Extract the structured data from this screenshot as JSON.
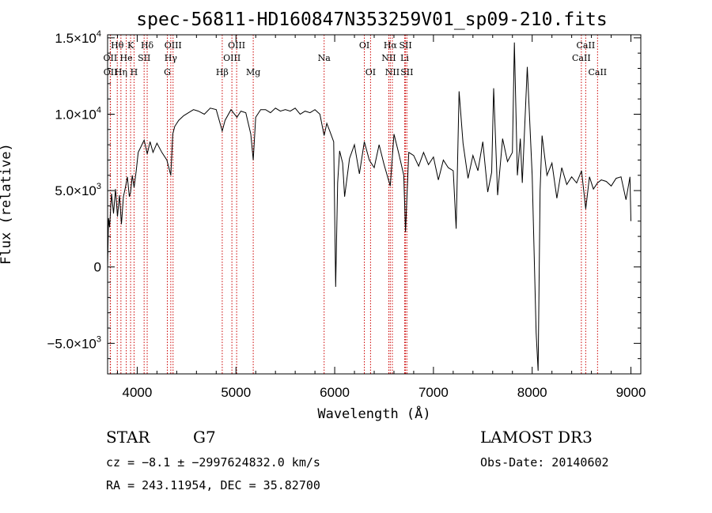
{
  "chart_data": {
    "type": "line",
    "title": "spec-56811-HD160847N353259V01_sp09-210.fits",
    "xlabel": "Wavelength (Å)",
    "ylabel": "Flux (relative)",
    "xlim": [
      3700,
      9100
    ],
    "ylim": [
      -7000,
      15200
    ],
    "x_ticks": [
      4000,
      5000,
      6000,
      7000,
      8000,
      9000
    ],
    "x_tick_labels": [
      "4000",
      "5000",
      "6000",
      "7000",
      "8000",
      "9000"
    ],
    "y_ticks": [
      -5000,
      0,
      5000,
      10000,
      15000
    ],
    "y_tick_labels": [
      {
        "mantissa": "−5.0×10",
        "exp": "3"
      },
      {
        "mantissa": "0",
        "exp": ""
      },
      {
        "mantissa": "5.0×10",
        "exp": "3"
      },
      {
        "mantissa": "1.0×10",
        "exp": "4"
      },
      {
        "mantissa": "1.5×10",
        "exp": "4"
      }
    ],
    "line_color": "#000000",
    "marker_color": "#cc0000",
    "series": [
      {
        "x": [
          3700,
          3710,
          3720,
          3740,
          3760,
          3780,
          3800,
          3820,
          3840,
          3860,
          3880,
          3900,
          3920,
          3933,
          3950,
          3968,
          3990,
          4010,
          4040,
          4070,
          4101,
          4130,
          4160,
          4200,
          4250,
          4300,
          4340,
          4360,
          4380,
          4420,
          4470,
          4520,
          4570,
          4620,
          4680,
          4740,
          4800,
          4861,
          4890,
          4950,
          5010,
          5050,
          5100,
          5150,
          5175,
          5200,
          5250,
          5300,
          5350,
          5400,
          5450,
          5500,
          5550,
          5600,
          5650,
          5700,
          5750,
          5800,
          5850,
          5893,
          5920,
          5950,
          5990,
          6010,
          6030,
          6050,
          6080,
          6100,
          6150,
          6200,
          6250,
          6300,
          6350,
          6400,
          6450,
          6500,
          6563,
          6600,
          6650,
          6700,
          6717,
          6750,
          6800,
          6850,
          6900,
          6950,
          7000,
          7050,
          7100,
          7150,
          7200,
          7230,
          7260,
          7300,
          7350,
          7400,
          7450,
          7500,
          7550,
          7590,
          7610,
          7650,
          7700,
          7750,
          7800,
          7820,
          7850,
          7880,
          7900,
          7950,
          8000,
          8040,
          8060,
          8080,
          8100,
          8150,
          8200,
          8250,
          8300,
          8350,
          8400,
          8450,
          8500,
          8542,
          8580,
          8620,
          8662,
          8700,
          8750,
          8800,
          8850,
          8900,
          8950,
          8990,
          9000
        ],
        "y": [
          0,
          3200,
          2600,
          4800,
          3500,
          5100,
          3300,
          4700,
          2800,
          4600,
          5200,
          5900,
          4600,
          4900,
          6000,
          5200,
          6300,
          7500,
          7900,
          8300,
          7400,
          8200,
          7500,
          8100,
          7500,
          7000,
          6000,
          8700,
          9200,
          9600,
          9900,
          10100,
          10300,
          10200,
          10000,
          10400,
          10300,
          8900,
          9600,
          10300,
          9800,
          10200,
          10100,
          8700,
          7000,
          9800,
          10300,
          10300,
          10100,
          10400,
          10200,
          10300,
          10200,
          10400,
          10000,
          10200,
          10100,
          10300,
          10000,
          8600,
          9400,
          8900,
          8200,
          -1300,
          5500,
          7600,
          6800,
          4600,
          7100,
          8000,
          6100,
          8200,
          7000,
          6500,
          8000,
          6700,
          5300,
          8700,
          7400,
          6000,
          2300,
          7500,
          7300,
          6600,
          7500,
          6700,
          7200,
          5700,
          7000,
          6500,
          6300,
          2500,
          11500,
          8100,
          5800,
          7300,
          6300,
          8200,
          4900,
          6200,
          11700,
          4700,
          8400,
          6900,
          7500,
          14700,
          6000,
          8400,
          5500,
          13100,
          6000,
          -4300,
          -6800,
          5000,
          8600,
          6000,
          6800,
          4500,
          6500,
          5400,
          5900,
          5500,
          6300,
          3800,
          5900,
          5100,
          5500,
          5700,
          5600,
          5300,
          5800,
          5900,
          4400,
          5900,
          3000
        ]
      }
    ],
    "spectral_lines": [
      {
        "label": "Hθ",
        "wavelength": 3798,
        "row": 1
      },
      {
        "label": "OII",
        "wavelength": 3727,
        "row": 2
      },
      {
        "label": "OII",
        "wavelength": 3729,
        "row": 3
      },
      {
        "label": "He",
        "wavelength": 3889,
        "row": 2
      },
      {
        "label": "Hη",
        "wavelength": 3835,
        "row": 3
      },
      {
        "label": "K",
        "wavelength": 3933,
        "row": 1
      },
      {
        "label": "SII",
        "wavelength": 4070,
        "row": 2
      },
      {
        "label": "H",
        "wavelength": 3968,
        "row": 3
      },
      {
        "label": "Hδ",
        "wavelength": 4101,
        "row": 1
      },
      {
        "label": "OIII",
        "wavelength": 4363,
        "row": 1
      },
      {
        "label": "Hγ",
        "wavelength": 4340,
        "row": 2
      },
      {
        "label": "G",
        "wavelength": 4305,
        "row": 3
      },
      {
        "label": "Hβ",
        "wavelength": 4861,
        "row": 3
      },
      {
        "label": "OIII",
        "wavelength": 5007,
        "row": 1
      },
      {
        "label": "OIII",
        "wavelength": 4959,
        "row": 2
      },
      {
        "label": "Mg",
        "wavelength": 5175,
        "row": 3
      },
      {
        "label": "Na",
        "wavelength": 5893,
        "row": 2
      },
      {
        "label": "OI",
        "wavelength": 6300,
        "row": 1
      },
      {
        "label": "OI",
        "wavelength": 6363,
        "row": 3
      },
      {
        "label": "Hα",
        "wavelength": 6563,
        "row": 1
      },
      {
        "label": "SII",
        "wavelength": 6717,
        "row": 1
      },
      {
        "label": "NII",
        "wavelength": 6548,
        "row": 2
      },
      {
        "label": "Li",
        "wavelength": 6708,
        "row": 2
      },
      {
        "label": "NII",
        "wavelength": 6584,
        "row": 3
      },
      {
        "label": "SII",
        "wavelength": 6731,
        "row": 3
      },
      {
        "label": "CaII",
        "wavelength": 8542,
        "row": 1
      },
      {
        "label": "CaII",
        "wavelength": 8498,
        "row": 2
      },
      {
        "label": "CaII",
        "wavelength": 8662,
        "row": 3
      }
    ]
  },
  "info": {
    "object_type": "STAR",
    "subclass": "G7",
    "survey": "LAMOST DR3",
    "redshift_text": "cz = −8.1 ± −2997624832.0 km/s",
    "obs_date": "Obs-Date: 20140602",
    "coords": "RA = 243.11954, DEC =  35.82700"
  }
}
